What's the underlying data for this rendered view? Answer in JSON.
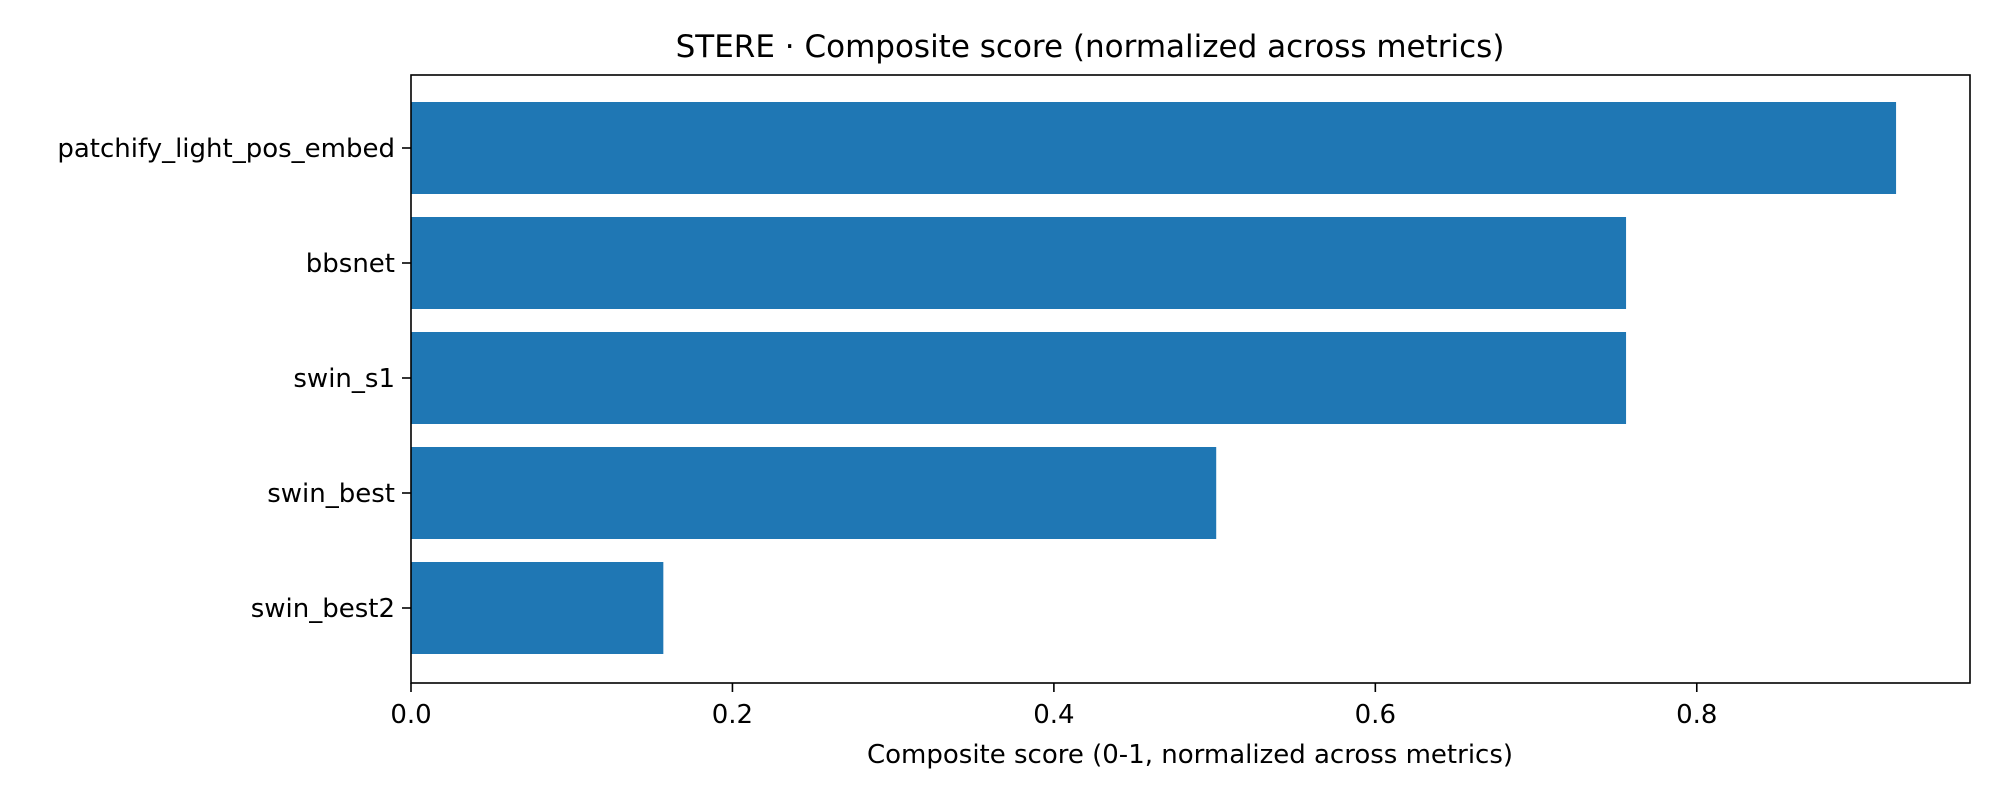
{
  "chart_data": {
    "type": "bar",
    "orientation": "horizontal",
    "title": "STERE · Composite score (normalized across metrics)",
    "xlabel": "Composite score (0-1, normalized across metrics)",
    "ylabel": "",
    "categories": [
      "patchify_light_pos_embed",
      "bbsnet",
      "swin_s1",
      "swin_best",
      "swin_best2"
    ],
    "values": [
      0.924,
      0.756,
      0.756,
      0.501,
      0.157
    ],
    "xlim": [
      0,
      0.97
    ],
    "xticks": [
      0.0,
      0.2,
      0.4,
      0.6,
      0.8
    ],
    "xtick_labels": [
      "0.0",
      "0.2",
      "0.4",
      "0.6",
      "0.8"
    ],
    "bar_color": "#1f77b4",
    "grid": false,
    "legend": "none"
  }
}
